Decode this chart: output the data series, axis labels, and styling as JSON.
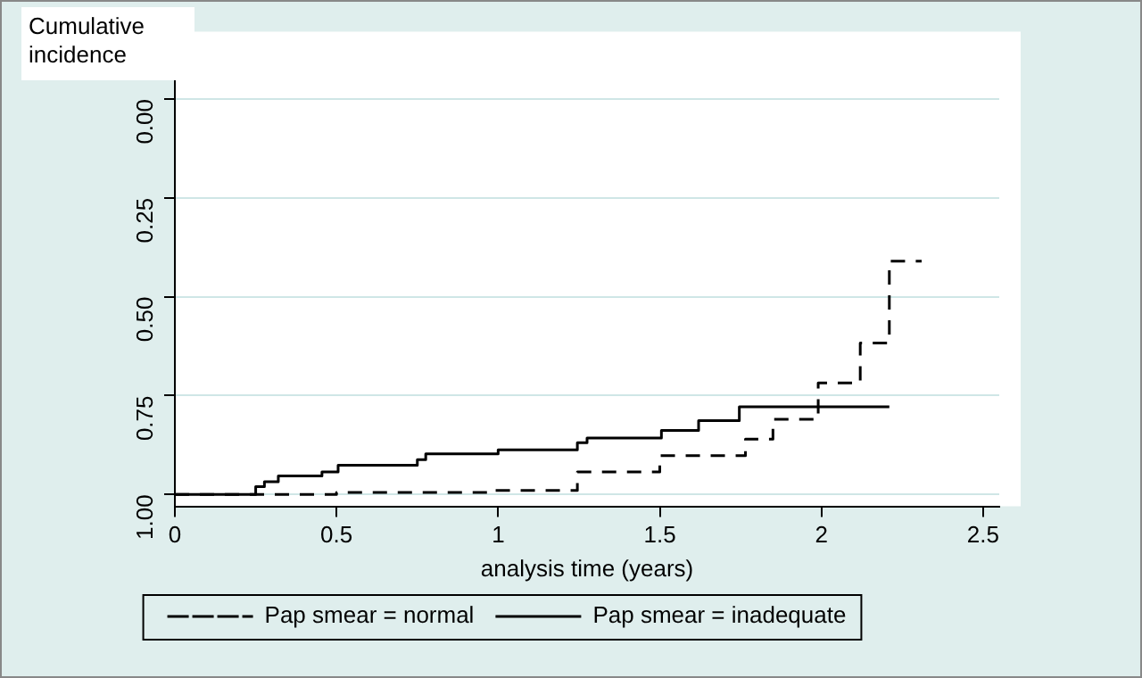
{
  "chart_data": {
    "type": "step",
    "xlabel": "analysis time (years)",
    "ylabel": "Cumulative incidence",
    "xlim": [
      0,
      2.55
    ],
    "xticks": [
      {
        "value": 0,
        "label": "0"
      },
      0.5,
      1,
      1.5,
      2,
      2.5
    ],
    "ylim": [
      1.03,
      -0.17
    ],
    "yticks": [
      {
        "value": 0,
        "label": "0.00"
      },
      0.25,
      {
        "value": 0.5,
        "label": "0.50"
      },
      0.75,
      {
        "value": 1,
        "label": "1.00"
      }
    ],
    "grid": "y",
    "legend": "bottom",
    "marker": "none",
    "series": [
      {
        "name": "Pap smear = normal",
        "color": "#000000",
        "line_style": "dashed",
        "x": [
          0,
          0.5,
          0.985,
          1.245,
          1.5,
          1.765,
          1.85,
          1.99,
          2.12,
          2.21,
          2.31
        ],
        "values": [
          1,
          0.995,
          0.99,
          0.943,
          0.902,
          0.86,
          0.81,
          0.718,
          0.617,
          0.41,
          0.41
        ]
      },
      {
        "name": "Pap smear = inadequate",
        "color": "#000000",
        "line_style": "solid",
        "x": [
          0,
          0.25,
          0.277,
          0.32,
          0.455,
          0.505,
          0.75,
          0.776,
          1.0,
          1.245,
          1.275,
          1.505,
          1.62,
          1.746,
          2.21
        ],
        "values": [
          1,
          0.98,
          0.968,
          0.953,
          0.943,
          0.926,
          0.912,
          0.897,
          0.887,
          0.869,
          0.857,
          0.838,
          0.813,
          0.778,
          0.778
        ]
      }
    ]
  }
}
